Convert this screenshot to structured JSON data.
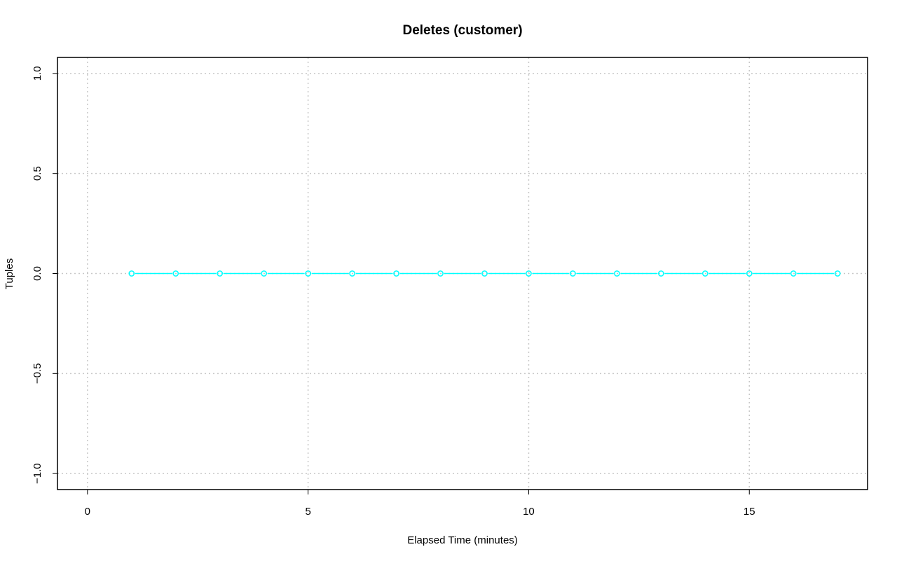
{
  "chart_data": {
    "type": "line",
    "title": "Deletes (customer)",
    "xlabel": "Elapsed Time (minutes)",
    "ylabel": "Tuples",
    "xlim": [
      -0.68,
      17.68
    ],
    "ylim": [
      -1.08,
      1.08
    ],
    "x_ticks": [
      0,
      5,
      10,
      15
    ],
    "y_ticks": [
      -1.0,
      -0.5,
      0.0,
      0.5,
      1.0
    ],
    "x_tick_labels": [
      "0",
      "5",
      "10",
      "15"
    ],
    "y_tick_labels": [
      "−1.0",
      "−0.5",
      "0.0",
      "0.5",
      "1.0"
    ],
    "grid": true,
    "series": [
      {
        "color": "#00ffff",
        "marker": "open-circle",
        "x": [
          1,
          2,
          3,
          4,
          5,
          6,
          7,
          8,
          9,
          10,
          11,
          12,
          13,
          14,
          15,
          16,
          17
        ],
        "y": [
          0,
          0,
          0,
          0,
          0,
          0,
          0,
          0,
          0,
          0,
          0,
          0,
          0,
          0,
          0,
          0,
          0
        ]
      }
    ]
  },
  "colors": {
    "series": "#00ffff",
    "grid": "#c8c8c8",
    "axis": "#000000"
  }
}
